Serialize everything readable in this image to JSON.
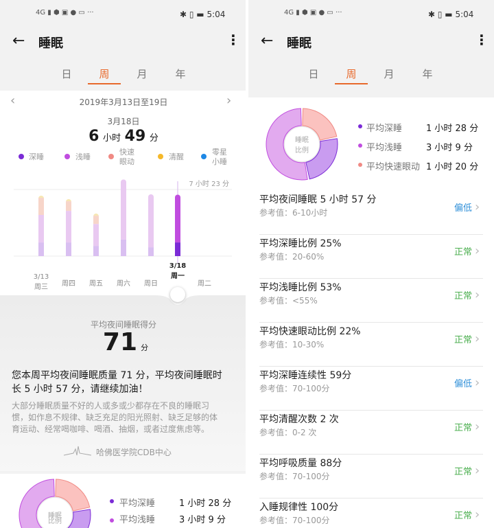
{
  "status_bar": {
    "time": "5:04",
    "network": "4G",
    "more": "···"
  },
  "header": {
    "title": "睡眠",
    "back_icon": "arrow-left-icon",
    "menu_icon": "more-vertical-icon"
  },
  "tabs": [
    {
      "label": "日"
    },
    {
      "label": "周",
      "active": true
    },
    {
      "label": "月"
    },
    {
      "label": "年"
    }
  ],
  "accent_color": "#e8692b",
  "week": {
    "range": "2019年3月13日至19日",
    "selected_date": "3月18日",
    "duration_h": "6",
    "unit_h": "小时",
    "duration_m": "49",
    "unit_m": "分"
  },
  "legend": [
    {
      "label": "深睡",
      "color": "#7b2bd6"
    },
    {
      "label": "浅睡",
      "color": "#c04ddf"
    },
    {
      "label": "快速\n眼动",
      "label_l1": "快速",
      "label_l2": "眼动",
      "color": "#f08a84"
    },
    {
      "label": "清醒",
      "color": "#f5b82a"
    },
    {
      "label": "零星\n小睡",
      "label_l1": "零星",
      "label_l2": "小睡",
      "color": "#1e88e5"
    }
  ],
  "chart_data": {
    "type": "bar",
    "stacked": true,
    "categories": [
      "周三",
      "周四",
      "周五",
      "周六",
      "周日",
      "周一",
      "周二"
    ],
    "category_dates": [
      "3/13",
      "",
      "",
      "",
      "",
      "3/18",
      ""
    ],
    "selected": "周一",
    "reference_line": {
      "label": "7 小时 23 分",
      "value_min": 443
    },
    "unit": "minutes",
    "series": [
      {
        "name": "深睡",
        "values": [
          91,
          91,
          68,
          110,
          59,
          91,
          0
        ]
      },
      {
        "name": "浅睡",
        "values": [
          183,
          210,
          146,
          400,
          352,
          318,
          0
        ]
      },
      {
        "name": "快速眼动",
        "values": [
          114,
          64,
          55,
          0,
          0,
          0,
          0
        ]
      },
      {
        "name": "清醒",
        "values": [
          14,
          14,
          14,
          0,
          0,
          0,
          0
        ]
      }
    ]
  },
  "score": {
    "label": "平均夜间睡眠得分",
    "value": "71",
    "unit": "分"
  },
  "summary": {
    "line1": "您本周平均夜间睡眠质量 71 分，平均夜间睡眠时",
    "line2": "长 5 小时 57 分，请继续加油！"
  },
  "advice": {
    "line1": "大部分睡眠质量不好的人或多或少都存在不良的睡眠习",
    "line2": "惯，如作息不规律、缺乏充足的阳光照射、缺乏足够的体",
    "line3": "育运动、经常喝咖啡、喝酒、抽烟，或者过度焦虑等。"
  },
  "source": "哈佛医学院CDB中心",
  "ratio": {
    "center_l1": "睡眠",
    "center_l2": "比例",
    "items": [
      {
        "label": "平均深睡",
        "value": "1 小时 28 分",
        "percent": 25,
        "color": "#7b2bd6",
        "fill": "#c99cf0"
      },
      {
        "label": "平均浅睡",
        "value": "3 小时 9 分",
        "percent": 53,
        "color": "#c04ddf",
        "fill": "#e2aaef"
      },
      {
        "label": "平均快速眼动",
        "value": "1 小时 20 分",
        "percent": 22,
        "color": "#f08a84",
        "fill": "#fbc2bf"
      }
    ]
  },
  "metrics": [
    {
      "title": "平均夜间睡眠  5 小时 57 分",
      "ref": "参考值：6-10小时",
      "status": "偏低",
      "color": "#2f8fd8"
    },
    {
      "title": "平均深睡比例  25%",
      "ref": "参考值：20-60%",
      "status": "正常",
      "color": "#4caf50"
    },
    {
      "title": "平均浅睡比例  53%",
      "ref": "参考值：<55%",
      "status": "正常",
      "color": "#4caf50"
    },
    {
      "title": "平均快速眼动比例  22%",
      "ref": "参考值：10-30%",
      "status": "正常",
      "color": "#4caf50"
    },
    {
      "title": "平均深睡连续性  59分",
      "ref": "参考值：70-100分",
      "status": "偏低",
      "color": "#2f8fd8"
    },
    {
      "title": "平均清醒次数  2 次",
      "ref": "参考值：0-2 次",
      "status": "正常",
      "color": "#4caf50"
    },
    {
      "title": "平均呼吸质量  88分",
      "ref": "参考值：70-100分",
      "status": "正常",
      "color": "#4caf50"
    },
    {
      "title": "入睡规律性  100分",
      "ref": "参考值：70-100分",
      "status": "正常",
      "color": "#4caf50"
    }
  ]
}
